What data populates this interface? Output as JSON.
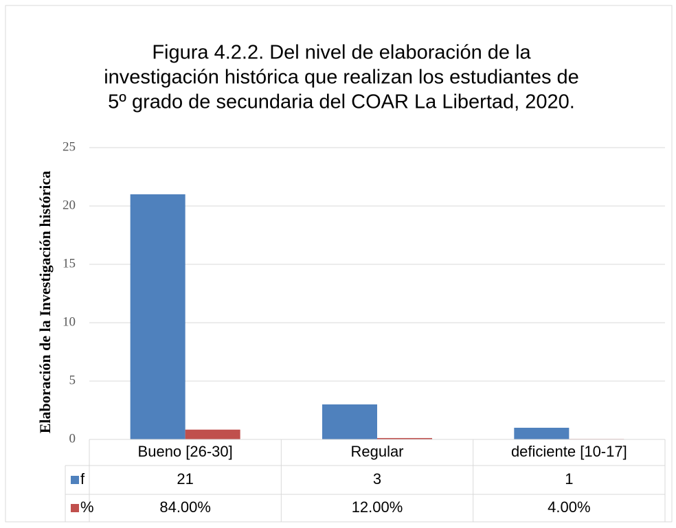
{
  "chart_data": {
    "type": "bar",
    "title": [
      "Figura 4.2.2. Del nivel de elaboración de la",
      "investigación histórica que realizan los estudiantes de",
      "5º grado de secundaria del COAR La Libertad, 2020."
    ],
    "y_label": "Elaboración de la Investigación histórica",
    "categories": [
      "Bueno [26-30]",
      "Regular",
      "deficiente [10-17]"
    ],
    "series": [
      {
        "name": "f",
        "color": "#4f81bd",
        "values": [
          21,
          3,
          1
        ]
      },
      {
        "name": "%",
        "color": "#c0504d",
        "values": [
          0.84,
          0.12,
          0.04
        ],
        "value_labels": [
          "84.00%",
          "12.00%",
          "4.00%"
        ]
      }
    ],
    "ylim": [
      0,
      25
    ],
    "yticks": [
      0,
      5,
      10,
      15,
      20,
      25
    ],
    "grid": true,
    "data_table": true
  }
}
